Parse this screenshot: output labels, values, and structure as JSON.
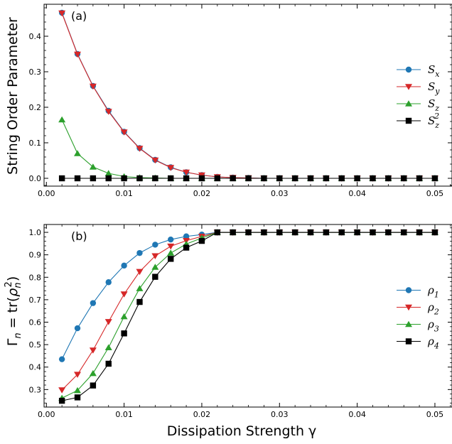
{
  "chart_data": [
    {
      "panel_label": "(a)",
      "type": "line",
      "ylabel": "String Order Parameter",
      "xlim": [
        -0.0003,
        0.0522
      ],
      "ylim": [
        -0.022,
        0.49
      ],
      "xticks": [
        0.0,
        0.01,
        0.02,
        0.03,
        0.04,
        0.05
      ],
      "xtick_labels": [
        "0.00",
        "0.01",
        "0.02",
        "0.03",
        "0.04",
        "0.05"
      ],
      "yticks": [
        0.0,
        0.1,
        0.2,
        0.3,
        0.4
      ],
      "ytick_labels": [
        "0.0",
        "0.1",
        "0.2",
        "0.3",
        "0.4"
      ],
      "legend_position": "center-right",
      "x": [
        0.002,
        0.004,
        0.006,
        0.008,
        0.01,
        0.012,
        0.014,
        0.016,
        0.018,
        0.02,
        0.022,
        0.024,
        0.026,
        0.028,
        0.03,
        0.032,
        0.034,
        0.036,
        0.038,
        0.04,
        0.042,
        0.044,
        0.046,
        0.048,
        0.05
      ],
      "series": [
        {
          "name": "S",
          "sub": "x",
          "sup": "",
          "color": "#1f77b4",
          "marker": "circle",
          "values": [
            0.466,
            0.35,
            0.26,
            0.19,
            0.131,
            0.085,
            0.052,
            0.031,
            0.017,
            0.009,
            0.004,
            0.002,
            0.001,
            0,
            0,
            0,
            0,
            0,
            0,
            0,
            0,
            0,
            0,
            0,
            0
          ]
        },
        {
          "name": "S",
          "sub": "y",
          "sup": "",
          "color": "#d62728",
          "marker": "triangle-down",
          "values": [
            0.465,
            0.349,
            0.259,
            0.188,
            0.13,
            0.084,
            0.051,
            0.03,
            0.017,
            0.009,
            0.004,
            0.002,
            0.001,
            0,
            0,
            0,
            0,
            0,
            0,
            0,
            0,
            0,
            0,
            0,
            0
          ]
        },
        {
          "name": "S",
          "sub": "z",
          "sup": "",
          "color": "#2ca02c",
          "marker": "triangle-up",
          "values": [
            0.165,
            0.07,
            0.032,
            0.014,
            0.005,
            0.002,
            0.001,
            0,
            0,
            0,
            0,
            0,
            0,
            0,
            0,
            0,
            0,
            0,
            0,
            0,
            0,
            0,
            0,
            0,
            0
          ]
        },
        {
          "name": "S",
          "sub": "z",
          "sup": "2",
          "color": "#000000",
          "marker": "square",
          "values": [
            0,
            0,
            0,
            0,
            0,
            0,
            0,
            0,
            0,
            0,
            0,
            0,
            0,
            0,
            0,
            0,
            0,
            0,
            0,
            0,
            0,
            0,
            0,
            0,
            0
          ]
        }
      ]
    },
    {
      "panel_label": "(b)",
      "type": "line",
      "ylabel": "Γn = tr(ρn²)",
      "xlabel": "Dissipation Strength γ",
      "xlim": [
        -0.0003,
        0.0522
      ],
      "ylim": [
        0.222,
        1.035
      ],
      "xticks": [
        0.0,
        0.01,
        0.02,
        0.03,
        0.04,
        0.05
      ],
      "xtick_labels": [
        "0.00",
        "0.01",
        "0.02",
        "0.03",
        "0.04",
        "0.05"
      ],
      "yticks": [
        0.3,
        0.4,
        0.5,
        0.6,
        0.7,
        0.8,
        0.9,
        1.0
      ],
      "ytick_labels": [
        "0.3",
        "0.4",
        "0.5",
        "0.6",
        "0.7",
        "0.8",
        "0.9",
        "1.0"
      ],
      "legend_position": "center-right",
      "x": [
        0.002,
        0.004,
        0.006,
        0.008,
        0.01,
        0.012,
        0.014,
        0.016,
        0.018,
        0.02,
        0.022,
        0.024,
        0.026,
        0.028,
        0.03,
        0.032,
        0.034,
        0.036,
        0.038,
        0.04,
        0.042,
        0.044,
        0.046,
        0.048,
        0.05
      ],
      "series": [
        {
          "name": "ρ",
          "sub": "1",
          "sup": "",
          "color": "#1f77b4",
          "marker": "circle",
          "values": [
            0.435,
            0.573,
            0.685,
            0.778,
            0.852,
            0.908,
            0.945,
            0.968,
            0.982,
            0.99,
            1.0,
            1.0,
            1.0,
            1.0,
            1.0,
            1.0,
            1.0,
            1.0,
            1.0,
            1.0,
            1.0,
            1.0,
            1.0,
            1.0,
            1.0
          ]
        },
        {
          "name": "ρ",
          "sub": "2",
          "sup": "",
          "color": "#d62728",
          "marker": "triangle-down",
          "values": [
            0.298,
            0.367,
            0.475,
            0.602,
            0.725,
            0.825,
            0.895,
            0.938,
            0.963,
            0.982,
            1.0,
            1.0,
            1.0,
            1.0,
            1.0,
            1.0,
            1.0,
            1.0,
            1.0,
            1.0,
            1.0,
            1.0,
            1.0,
            1.0,
            1.0
          ]
        },
        {
          "name": "ρ",
          "sub": "3",
          "sup": "",
          "color": "#2ca02c",
          "marker": "triangle-up",
          "values": [
            0.262,
            0.296,
            0.372,
            0.487,
            0.625,
            0.75,
            0.845,
            0.908,
            0.948,
            0.975,
            1.0,
            1.0,
            1.0,
            1.0,
            1.0,
            1.0,
            1.0,
            1.0,
            1.0,
            1.0,
            1.0,
            1.0,
            1.0,
            1.0,
            1.0
          ]
        },
        {
          "name": "ρ",
          "sub": "4",
          "sup": "",
          "color": "#000000",
          "marker": "square",
          "values": [
            0.25,
            0.265,
            0.318,
            0.415,
            0.55,
            0.69,
            0.802,
            0.882,
            0.932,
            0.962,
            1.0,
            1.0,
            1.0,
            1.0,
            1.0,
            1.0,
            1.0,
            1.0,
            1.0,
            1.0,
            1.0,
            1.0,
            1.0,
            1.0,
            1.0
          ]
        }
      ]
    }
  ]
}
